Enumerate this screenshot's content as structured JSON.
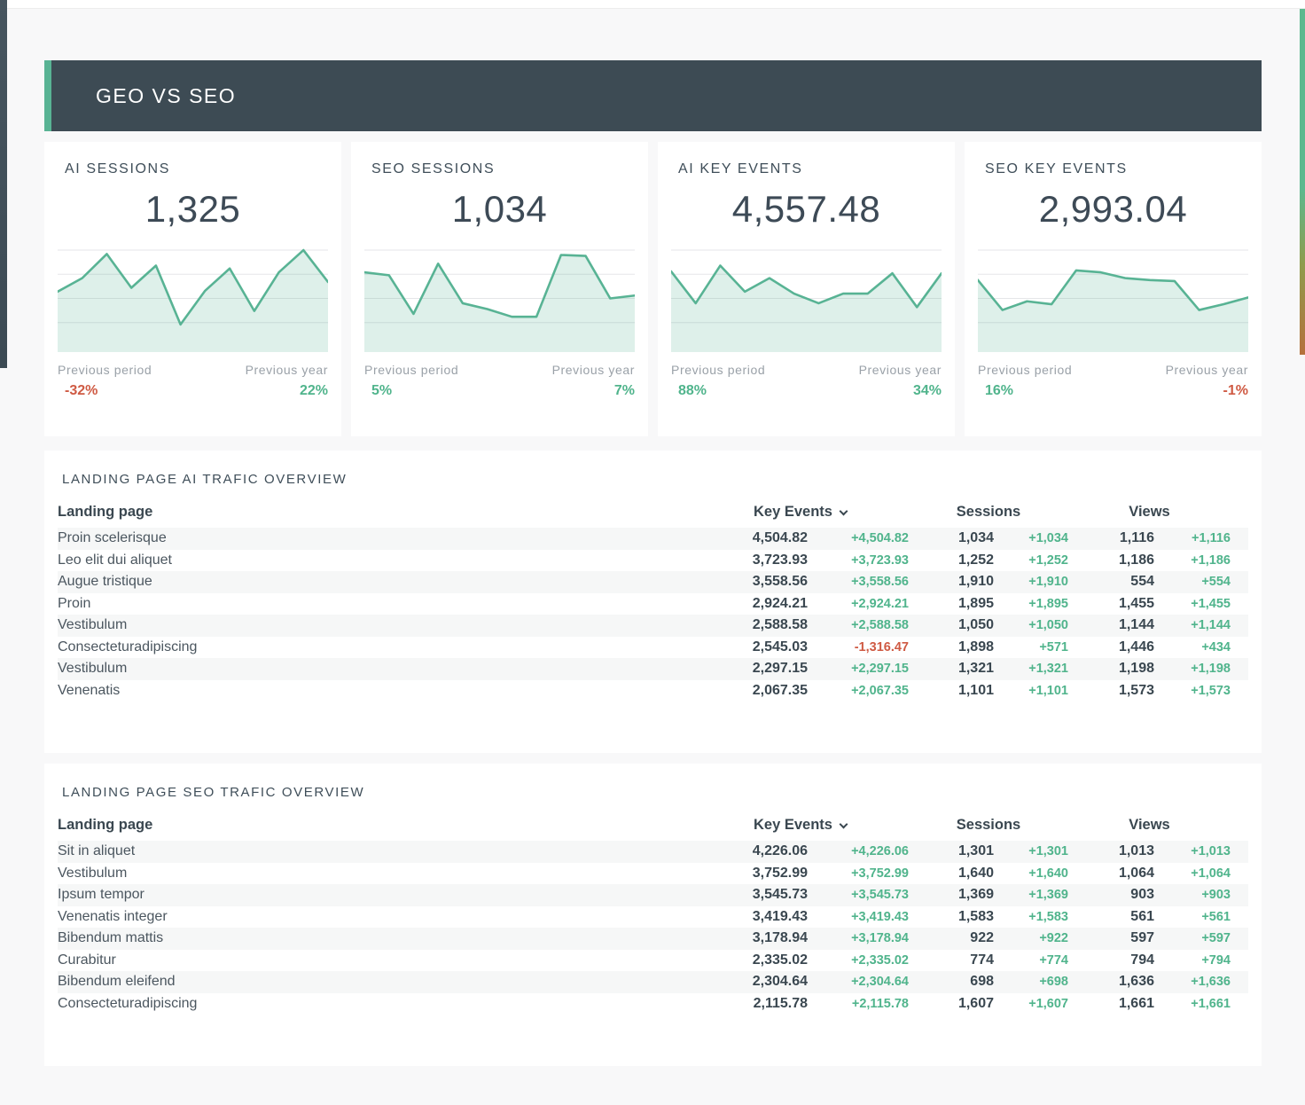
{
  "page": {
    "title": "GEO VS SEO"
  },
  "colors": {
    "header_bg": "#3d4b54",
    "accent_green": "#58b394",
    "trend_up": "#50b48c",
    "trend_down": "#cf5a43",
    "sparkline_stroke": "#58b394",
    "page_bg": "#f8f8f9"
  },
  "kpi_cards": [
    {
      "label": "AI SESSIONS",
      "value": "1,325",
      "previous_period_label": "Previous period",
      "previous_period_value": "-32%",
      "previous_year_label": "Previous year",
      "previous_year_value": "22%",
      "spark": [
        0.57,
        0.71,
        0.96,
        0.61,
        0.84,
        0.23,
        0.58,
        0.81,
        0.37,
        0.77,
        1.0,
        0.67
      ]
    },
    {
      "label": "SEO SESSIONS",
      "value": "1,034",
      "previous_period_label": "Previous period",
      "previous_period_value": "5%",
      "previous_year_label": "Previous year",
      "previous_year_value": "7%",
      "spark": [
        0.77,
        0.74,
        0.34,
        0.86,
        0.45,
        0.39,
        0.31,
        0.31,
        0.95,
        0.94,
        0.5,
        0.53
      ]
    },
    {
      "label": "AI KEY EVENTS",
      "value": "4,557.48",
      "previous_period_label": "Previous period",
      "previous_period_value": "88%",
      "previous_year_label": "Previous year",
      "previous_year_value": "34%",
      "spark": [
        0.78,
        0.45,
        0.84,
        0.57,
        0.71,
        0.55,
        0.45,
        0.55,
        0.55,
        0.76,
        0.41,
        0.76
      ]
    },
    {
      "label": "SEO KEY EVENTS",
      "value": "2,993.04",
      "previous_period_label": "Previous period",
      "previous_period_value": "16%",
      "previous_year_label": "Previous year",
      "previous_year_value": "-1%",
      "spark": [
        0.69,
        0.38,
        0.47,
        0.44,
        0.79,
        0.77,
        0.71,
        0.69,
        0.68,
        0.38,
        0.44,
        0.51
      ]
    }
  ],
  "tables": [
    {
      "title": "LANDING PAGE AI TRAFIC OVERVIEW",
      "columns": {
        "landing_page": "Landing page",
        "key_events": "Key Events",
        "sessions": "Sessions",
        "views": "Views"
      },
      "rows": [
        {
          "landing_page": "Proin scelerisque",
          "key_events": "4,504.82",
          "key_events_change": "+4,504.82",
          "sessions": "1,034",
          "sessions_change": "+1,034",
          "views": "1,116",
          "views_change": "+1,116"
        },
        {
          "landing_page": "Leo elit dui aliquet",
          "key_events": "3,723.93",
          "key_events_change": "+3,723.93",
          "sessions": "1,252",
          "sessions_change": "+1,252",
          "views": "1,186",
          "views_change": "+1,186"
        },
        {
          "landing_page": "Augue tristique",
          "key_events": "3,558.56",
          "key_events_change": "+3,558.56",
          "sessions": "1,910",
          "sessions_change": "+1,910",
          "views": "554",
          "views_change": "+554"
        },
        {
          "landing_page": "Proin",
          "key_events": "2,924.21",
          "key_events_change": "+2,924.21",
          "sessions": "1,895",
          "sessions_change": "+1,895",
          "views": "1,455",
          "views_change": "+1,455"
        },
        {
          "landing_page": "Vestibulum",
          "key_events": "2,588.58",
          "key_events_change": "+2,588.58",
          "sessions": "1,050",
          "sessions_change": "+1,050",
          "views": "1,144",
          "views_change": "+1,144"
        },
        {
          "landing_page": "Consecteturadipiscing",
          "key_events": "2,545.03",
          "key_events_change": "-1,316.47",
          "sessions": "1,898",
          "sessions_change": "+571",
          "views": "1,446",
          "views_change": "+434"
        },
        {
          "landing_page": "Vestibulum",
          "key_events": "2,297.15",
          "key_events_change": "+2,297.15",
          "sessions": "1,321",
          "sessions_change": "+1,321",
          "views": "1,198",
          "views_change": "+1,198"
        },
        {
          "landing_page": "Venenatis",
          "key_events": "2,067.35",
          "key_events_change": "+2,067.35",
          "sessions": "1,101",
          "sessions_change": "+1,101",
          "views": "1,573",
          "views_change": "+1,573"
        }
      ]
    },
    {
      "title": "LANDING PAGE SEO TRAFIC OVERVIEW",
      "columns": {
        "landing_page": "Landing page",
        "key_events": "Key Events",
        "sessions": "Sessions",
        "views": "Views"
      },
      "rows": [
        {
          "landing_page": "Sit in aliquet",
          "key_events": "4,226.06",
          "key_events_change": "+4,226.06",
          "sessions": "1,301",
          "sessions_change": "+1,301",
          "views": "1,013",
          "views_change": "+1,013"
        },
        {
          "landing_page": "Vestibulum",
          "key_events": "3,752.99",
          "key_events_change": "+3,752.99",
          "sessions": "1,640",
          "sessions_change": "+1,640",
          "views": "1,064",
          "views_change": "+1,064"
        },
        {
          "landing_page": "Ipsum tempor",
          "key_events": "3,545.73",
          "key_events_change": "+3,545.73",
          "sessions": "1,369",
          "sessions_change": "+1,369",
          "views": "903",
          "views_change": "+903"
        },
        {
          "landing_page": "Venenatis integer",
          "key_events": "3,419.43",
          "key_events_change": "+3,419.43",
          "sessions": "1,583",
          "sessions_change": "+1,583",
          "views": "561",
          "views_change": "+561"
        },
        {
          "landing_page": "Bibendum mattis",
          "key_events": "3,178.94",
          "key_events_change": "+3,178.94",
          "sessions": "922",
          "sessions_change": "+922",
          "views": "597",
          "views_change": "+597"
        },
        {
          "landing_page": "Curabitur",
          "key_events": "2,335.02",
          "key_events_change": "+2,335.02",
          "sessions": "774",
          "sessions_change": "+774",
          "views": "794",
          "views_change": "+794"
        },
        {
          "landing_page": "Bibendum eleifend",
          "key_events": "2,304.64",
          "key_events_change": "+2,304.64",
          "sessions": "698",
          "sessions_change": "+698",
          "views": "1,636",
          "views_change": "+1,636"
        },
        {
          "landing_page": "Consecteturadipiscing",
          "key_events": "2,115.78",
          "key_events_change": "+2,115.78",
          "sessions": "1,607",
          "sessions_change": "+1,607",
          "views": "1,661",
          "views_change": "+1,661"
        }
      ]
    }
  ]
}
